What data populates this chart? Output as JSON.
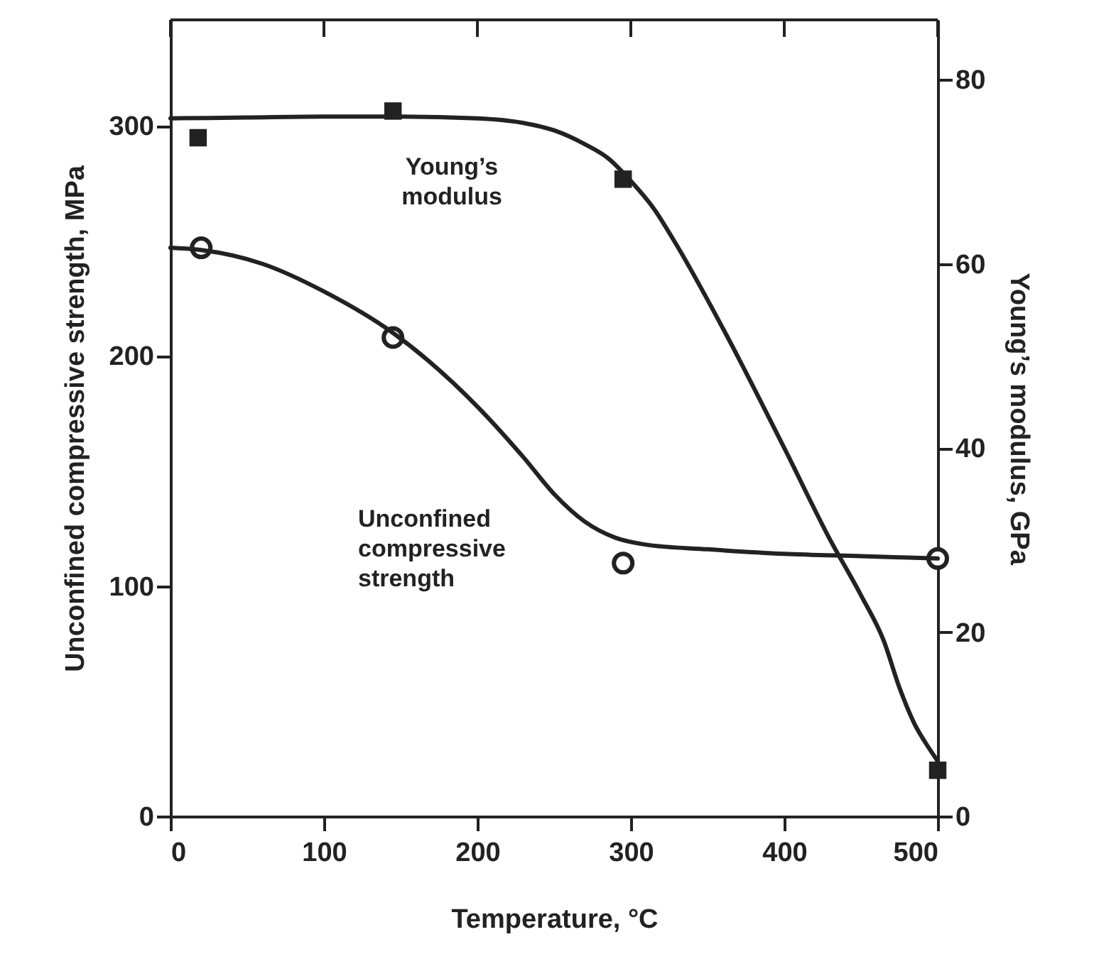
{
  "chart_data": {
    "type": "line",
    "xlabel": "Temperature, °C",
    "ylabel": "Unconfined compressive strength, MPa",
    "y2label": "Young’s modulus, GPa",
    "xlim": [
      0,
      500
    ],
    "xticks": [
      0,
      100,
      200,
      300,
      400,
      500
    ],
    "ylim": [
      0,
      346
    ],
    "yticks": [
      0,
      100,
      200,
      300
    ],
    "y2lim": [
      0,
      86.5
    ],
    "y2ticks": [
      0,
      20,
      40,
      60,
      80
    ],
    "grid": false,
    "series": [
      {
        "type": "scatter",
        "marker": "circle",
        "color": "#222222",
        "x": [
          20,
          145,
          295,
          500
        ],
        "values": [
          247,
          208,
          110,
          112
        ]
      },
      {
        "type": "scatter",
        "marker": "square",
        "color": "#222222",
        "axis": "y2",
        "x": [
          18,
          145,
          295,
          500
        ],
        "values": [
          73.7,
          76.6,
          69.2,
          5
        ]
      },
      {
        "name": "Unconfined compressive strength",
        "marker": "none",
        "line_style": "solid",
        "color": "#222222",
        "x": [
          0,
          20,
          60,
          100,
          145,
          200,
          230,
          250,
          270,
          290,
          310,
          350,
          400,
          450,
          500
        ],
        "values": [
          247,
          246,
          240,
          228,
          210,
          178,
          156,
          140,
          128,
          121,
          118,
          116,
          114,
          113,
          112
        ]
      },
      {
        "name": "Young’s modulus",
        "marker": "none",
        "line_style": "solid",
        "color": "#222222",
        "axis": "y2",
        "x": [
          0,
          50,
          100,
          150,
          200,
          230,
          250,
          270,
          285,
          300,
          315,
          330,
          360,
          400,
          430,
          450,
          465,
          475,
          485,
          492,
          500
        ],
        "values": [
          75.8,
          75.9,
          76,
          76,
          75.8,
          75.3,
          74.5,
          73,
          71.5,
          69,
          66,
          62,
          53,
          40,
          30,
          24,
          19,
          14,
          10,
          8,
          6
        ]
      }
    ]
  }
}
